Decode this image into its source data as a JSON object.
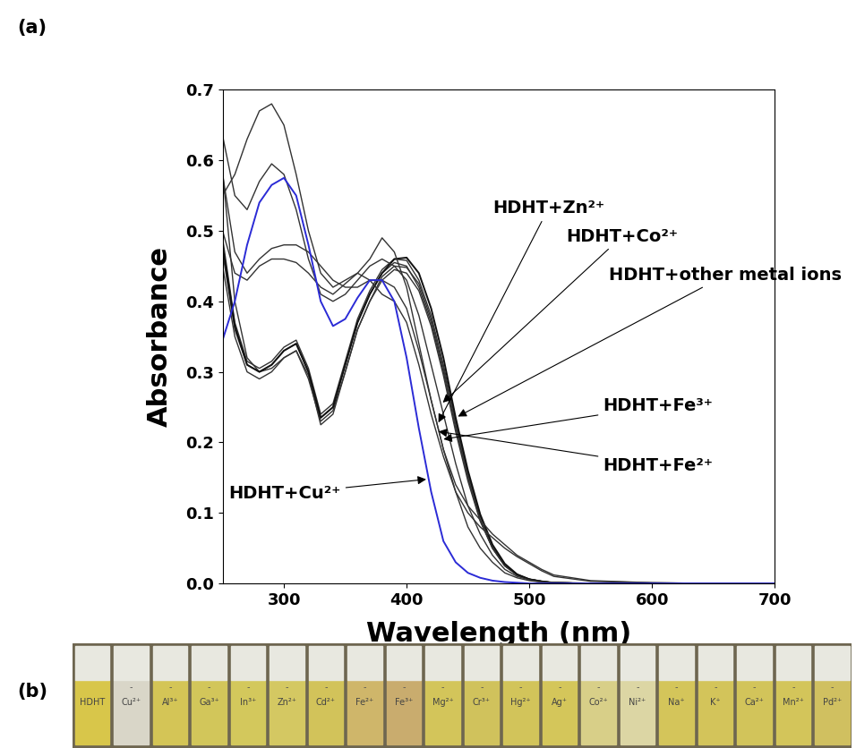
{
  "chart_data": {
    "type": "line",
    "x_label": "Wavelength (nm)",
    "y_label": "Absorbance",
    "xlim": [
      250,
      700
    ],
    "xticks": [
      300,
      400,
      500,
      600,
      700
    ],
    "ylim": [
      0.0,
      0.7
    ],
    "yticks": [
      0.0,
      0.1,
      0.2,
      0.3,
      0.4,
      0.5,
      0.6,
      0.7
    ],
    "grid": false,
    "x": [
      250,
      260,
      270,
      280,
      290,
      300,
      310,
      320,
      330,
      340,
      350,
      360,
      370,
      380,
      390,
      400,
      410,
      420,
      430,
      440,
      450,
      460,
      470,
      480,
      490,
      500,
      510,
      520,
      550,
      600,
      650,
      700
    ],
    "series": [
      {
        "color": "#333333",
        "values": [
          0.47,
          0.36,
          0.31,
          0.3,
          0.31,
          0.33,
          0.34,
          0.3,
          0.235,
          0.25,
          0.31,
          0.37,
          0.41,
          0.44,
          0.455,
          0.45,
          0.42,
          0.37,
          0.3,
          0.22,
          0.15,
          0.09,
          0.05,
          0.025,
          0.012,
          0.006,
          0.003,
          0.001,
          0.0,
          0.0,
          0.0,
          0.0
        ]
      },
      {
        "color": "#333333",
        "values": [
          0.45,
          0.35,
          0.3,
          0.29,
          0.3,
          0.32,
          0.33,
          0.29,
          0.23,
          0.245,
          0.3,
          0.36,
          0.4,
          0.43,
          0.445,
          0.44,
          0.415,
          0.365,
          0.295,
          0.215,
          0.145,
          0.088,
          0.05,
          0.025,
          0.012,
          0.006,
          0.003,
          0.001,
          0.0,
          0.0,
          0.0,
          0.0
        ]
      },
      {
        "color": "#333333",
        "values": [
          0.49,
          0.37,
          0.315,
          0.305,
          0.315,
          0.335,
          0.345,
          0.305,
          0.24,
          0.255,
          0.315,
          0.375,
          0.415,
          0.445,
          0.46,
          0.458,
          0.43,
          0.38,
          0.31,
          0.23,
          0.155,
          0.095,
          0.052,
          0.026,
          0.013,
          0.006,
          0.003,
          0.001,
          0.0,
          0.0,
          0.0,
          0.0
        ]
      },
      {
        "color": "#333333",
        "values": [
          0.585,
          0.4,
          0.32,
          0.3,
          0.305,
          0.32,
          0.33,
          0.295,
          0.225,
          0.24,
          0.3,
          0.36,
          0.4,
          0.435,
          0.45,
          0.448,
          0.425,
          0.375,
          0.305,
          0.225,
          0.15,
          0.09,
          0.05,
          0.025,
          0.012,
          0.006,
          0.003,
          0.001,
          0.0,
          0.0,
          0.0,
          0.0
        ]
      },
      {
        "name": "HDHT+other metal ions",
        "color": "#111111",
        "values": [
          0.48,
          0.365,
          0.31,
          0.3,
          0.31,
          0.33,
          0.34,
          0.3,
          0.235,
          0.25,
          0.31,
          0.37,
          0.41,
          0.44,
          0.46,
          0.462,
          0.44,
          0.39,
          0.32,
          0.235,
          0.16,
          0.098,
          0.055,
          0.028,
          0.013,
          0.006,
          0.003,
          0.001,
          0.0,
          0.0,
          0.0,
          0.0
        ]
      },
      {
        "name": "HDHT+Zn²⁺",
        "color": "#333333",
        "values": [
          0.55,
          0.58,
          0.63,
          0.67,
          0.68,
          0.65,
          0.58,
          0.5,
          0.44,
          0.42,
          0.43,
          0.44,
          0.46,
          0.49,
          0.47,
          0.42,
          0.34,
          0.26,
          0.19,
          0.13,
          0.08,
          0.05,
          0.03,
          0.015,
          0.008,
          0.004,
          0.002,
          0.001,
          0.0,
          0.0,
          0.0,
          0.0
        ]
      },
      {
        "name": "HDHT+Co²⁺",
        "color": "#333333",
        "values": [
          0.635,
          0.55,
          0.53,
          0.57,
          0.595,
          0.58,
          0.53,
          0.46,
          0.41,
          0.4,
          0.41,
          0.43,
          0.45,
          0.46,
          0.45,
          0.43,
          0.38,
          0.31,
          0.24,
          0.17,
          0.11,
          0.07,
          0.04,
          0.02,
          0.01,
          0.005,
          0.002,
          0.001,
          0.0,
          0.0,
          0.0,
          0.0
        ]
      },
      {
        "name": "HDHT+Fe³⁺",
        "color": "#333333",
        "values": [
          0.58,
          0.47,
          0.44,
          0.46,
          0.475,
          0.48,
          0.48,
          0.47,
          0.45,
          0.43,
          0.42,
          0.42,
          0.43,
          0.43,
          0.42,
          0.39,
          0.33,
          0.26,
          0.19,
          0.14,
          0.11,
          0.09,
          0.07,
          0.055,
          0.04,
          0.03,
          0.02,
          0.012,
          0.004,
          0.001,
          0.0,
          0.0
        ]
      },
      {
        "name": "HDHT+Fe²⁺",
        "color": "#333333",
        "values": [
          0.5,
          0.44,
          0.43,
          0.45,
          0.46,
          0.46,
          0.455,
          0.44,
          0.42,
          0.41,
          0.425,
          0.44,
          0.43,
          0.41,
          0.4,
          0.37,
          0.31,
          0.24,
          0.18,
          0.13,
          0.1,
          0.08,
          0.065,
          0.05,
          0.038,
          0.028,
          0.018,
          0.01,
          0.003,
          0.001,
          0.0,
          0.0
        ]
      },
      {
        "name": "HDHT+Cu²⁺",
        "color": "#2b2bd6",
        "values": [
          0.345,
          0.4,
          0.48,
          0.54,
          0.565,
          0.575,
          0.55,
          0.48,
          0.4,
          0.365,
          0.375,
          0.405,
          0.43,
          0.43,
          0.4,
          0.32,
          0.22,
          0.13,
          0.06,
          0.03,
          0.015,
          0.008,
          0.004,
          0.002,
          0.001,
          0.0,
          0.0,
          0.0,
          0.0,
          0.0,
          0.0,
          0.0
        ]
      }
    ]
  },
  "panel_labels": [
    "(a)",
    "(b)"
  ],
  "photo": {
    "labels": [
      "HDHT",
      "Cu²⁺",
      "Al³⁺",
      "Ga³⁺",
      "In³⁺",
      "Zn²⁺",
      "Cd²⁺",
      "Fe²⁺",
      "Fe³⁺",
      "Mg²⁺",
      "Cr³⁺",
      "Hg²⁺",
      "Ag⁺",
      "Co²⁺",
      "Ni²⁺",
      "Na⁺",
      "K⁺",
      "Ca²⁺",
      "Mn²⁺",
      "Pd²⁺"
    ],
    "marks": [
      null,
      "-",
      "-",
      "-",
      "-",
      "-",
      "-",
      "-",
      "-",
      "-",
      "-",
      "-",
      "-",
      "-",
      "-",
      "-",
      "-",
      "-",
      "-",
      "-"
    ],
    "colors": [
      "#d8c64a",
      "#d9d6c8",
      "#d4c556",
      "#d2c65a",
      "#d3c85c",
      "#d4c862",
      "#d2c35a",
      "#cfb66a",
      "#c9ac6e",
      "#d3c55a",
      "#d0c25c",
      "#d2c45a",
      "#d4c65a",
      "#d8cf88",
      "#dcd6a4",
      "#d4c55a",
      "#d3c45a",
      "#d2c45a",
      "#d3c55a",
      "#d0c060"
    ]
  }
}
